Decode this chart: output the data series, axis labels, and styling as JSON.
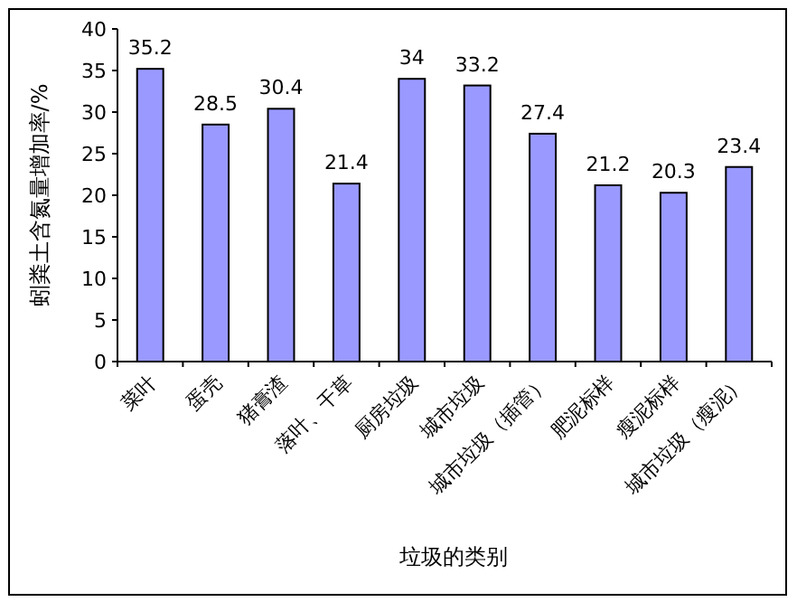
{
  "chart_data": {
    "type": "bar",
    "xlabel": "垃圾的类别",
    "ylabel": "蚓粪土含氮量增加率/%",
    "categories": [
      "菜叶",
      "蛋壳",
      "猪膏渣",
      "落叶、干草",
      "厨房垃圾",
      "城市垃圾",
      "城市垃圾（插管）",
      "肥泥标样",
      "瘦泥标样",
      "城市垃圾（瘦泥）"
    ],
    "values": [
      35.2,
      28.5,
      30.4,
      21.4,
      34,
      33.2,
      27.4,
      21.2,
      20.3,
      23.4
    ],
    "color": "#9999ff",
    "ylim": [
      0,
      40
    ],
    "yticks": [
      0,
      5,
      10,
      15,
      20,
      25,
      30,
      35,
      40
    ],
    "data_labels": true
  }
}
